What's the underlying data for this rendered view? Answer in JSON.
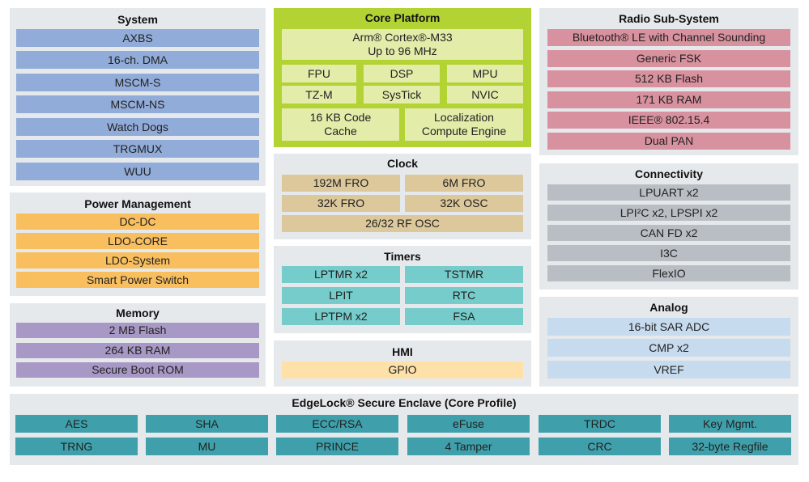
{
  "colors": {
    "panel_bg": "#e6e9ec",
    "system": "#92acd9",
    "power": "#f9bf5e",
    "memory": "#a898c6",
    "core_bg": "#b3d234",
    "core_block": "#e3eca9",
    "clock": "#dcc89a",
    "timers": "#76cccb",
    "hmi": "#fde1a8",
    "radio": "#d8919e",
    "connectivity": "#b9bec4",
    "analog": "#c7dbef",
    "edgelock": "#3fa0ab"
  },
  "system": {
    "title": "System",
    "items": [
      "AXBS",
      "16-ch. DMA",
      "MSCM-S",
      "MSCM-NS",
      "Watch Dogs",
      "TRGMUX",
      "WUU"
    ]
  },
  "power": {
    "title": "Power Management",
    "items": [
      "DC-DC",
      "LDO-CORE",
      "LDO-System",
      "Smart Power Switch"
    ]
  },
  "memory": {
    "title": "Memory",
    "items": [
      "2 MB Flash",
      "264 KB RAM",
      "Secure Boot ROM"
    ]
  },
  "core": {
    "title": "Core Platform",
    "cpu_line1": "Arm® Cortex®-M33",
    "cpu_line2": "Up to 96 MHz",
    "items": [
      "FPU",
      "DSP",
      "MPU",
      "TZ-M",
      "SysTick",
      "NVIC"
    ],
    "cache_line1": "16 KB Code",
    "cache_line2": "Cache",
    "lce_line1": "Localization",
    "lce_line2": "Compute Engine"
  },
  "clock": {
    "title": "Clock",
    "items": [
      "192M FRO",
      "6M FRO",
      "32K FRO",
      "32K OSC",
      "26/32 RF OSC"
    ]
  },
  "timers": {
    "title": "Timers",
    "items": [
      "LPTMR x2",
      "TSTMR",
      "LPIT",
      "RTC",
      "LPTPM x2",
      "FSA"
    ]
  },
  "hmi": {
    "title": "HMI",
    "items": [
      "GPIO"
    ]
  },
  "radio": {
    "title": "Radio Sub-System",
    "items": [
      "Bluetooth® LE with Channel Sounding",
      "Generic FSK",
      "512 KB Flash",
      "171 KB RAM",
      "IEEE® 802.15.4",
      "Dual PAN"
    ]
  },
  "connectivity": {
    "title": "Connectivity",
    "items": [
      "LPUART x2",
      "LPI²C x2, LPSPI x2",
      "CAN FD x2",
      "I3C",
      "FlexIO"
    ]
  },
  "analog": {
    "title": "Analog",
    "items": [
      "16-bit SAR ADC",
      "CMP x2",
      "VREF"
    ]
  },
  "edgelock": {
    "title": "EdgeLock® Secure Enclave (Core Profile)",
    "items": [
      "AES",
      "SHA",
      "ECC/RSA",
      "eFuse",
      "TRDC",
      "Key Mgmt.",
      "TRNG",
      "MU",
      "PRINCE",
      "4 Tamper",
      "CRC",
      "32-byte Regfile"
    ]
  }
}
